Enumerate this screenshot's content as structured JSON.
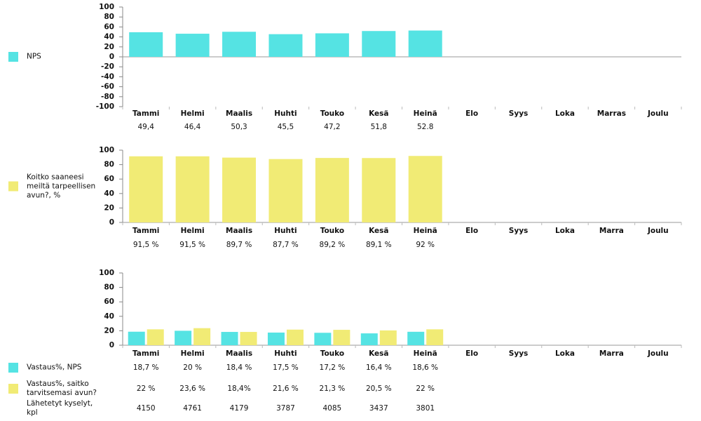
{
  "chart_data": [
    {
      "type": "bar",
      "categories": [
        "Tammi",
        "Helmi",
        "Maalis",
        "Huhti",
        "Touko",
        "Kesä",
        "Heinä",
        "Elo",
        "Syys",
        "Loka",
        "Marras",
        "Joulu"
      ],
      "series": [
        {
          "name": "NPS",
          "color": "#55e3e3",
          "values": [
            49.4,
            46.4,
            50.3,
            45.5,
            47.2,
            51.8,
            52.8,
            null,
            null,
            null,
            null,
            null
          ],
          "value_labels": [
            "49,4",
            "46,4",
            "50,3",
            "45,5",
            "47,2",
            "51,8",
            "52.8",
            null,
            null,
            null,
            null,
            null
          ]
        }
      ],
      "ylim": [
        -100,
        100
      ],
      "yticks": [
        -100,
        -80,
        -60,
        -40,
        -20,
        0,
        20,
        40,
        60,
        80,
        100
      ]
    },
    {
      "type": "bar",
      "categories": [
        "Tammi",
        "Helmi",
        "Maalis",
        "Huhti",
        "Touko",
        "Kesä",
        "Heinä",
        "Elo",
        "Syys",
        "Loka",
        "Marra",
        "Joulu"
      ],
      "series": [
        {
          "name": "Koitko saaneesi meiltä tarpeellisen avun?, %",
          "color": "#f1eb75",
          "values": [
            91.5,
            91.5,
            89.7,
            87.7,
            89.2,
            89.1,
            92,
            null,
            null,
            null,
            null,
            null
          ],
          "value_labels": [
            "91,5 %",
            "91,5 %",
            "89,7 %",
            "87,7 %",
            "89,2 %",
            "89,1 %",
            "92 %",
            null,
            null,
            null,
            null,
            null
          ]
        }
      ],
      "ylim": [
        0,
        100
      ],
      "yticks": [
        0,
        20,
        40,
        60,
        80,
        100
      ]
    },
    {
      "type": "bar",
      "categories": [
        "Tammi",
        "Helmi",
        "Maalis",
        "Huhti",
        "Touko",
        "Kesä",
        "Heinä",
        "Elo",
        "Syys",
        "Loka",
        "Marra",
        "Joulu"
      ],
      "series": [
        {
          "name": "Vastaus%, NPS",
          "color": "#55e3e3",
          "values": [
            18.7,
            20,
            18.4,
            17.5,
            17.2,
            16.4,
            18.6,
            null,
            null,
            null,
            null,
            null
          ],
          "value_labels": [
            "18,7 %",
            "20 %",
            "18,4 %",
            "17,5 %",
            "17,2 %",
            "16,4 %",
            "18,6 %",
            null,
            null,
            null,
            null,
            null
          ]
        },
        {
          "name": "Vastaus%, saitko tarvitsemasi avun?",
          "color": "#f1eb75",
          "values": [
            22,
            23.6,
            18.4,
            21.6,
            21.3,
            20.5,
            22,
            null,
            null,
            null,
            null,
            null
          ],
          "value_labels": [
            "22 %",
            "23,6 %",
            "18,4%",
            "21,6 %",
            "21,3 %",
            "20,5 %",
            "22 %",
            null,
            null,
            null,
            null,
            null
          ]
        }
      ],
      "table_rows": [
        {
          "name": "Lähetetyt kyselyt, kpl",
          "values": [
            4150,
            4761,
            4179,
            3787,
            4085,
            3437,
            3801
          ]
        }
      ],
      "ylim": [
        0,
        100
      ],
      "yticks": [
        0,
        20,
        40,
        60,
        80,
        100
      ]
    }
  ]
}
